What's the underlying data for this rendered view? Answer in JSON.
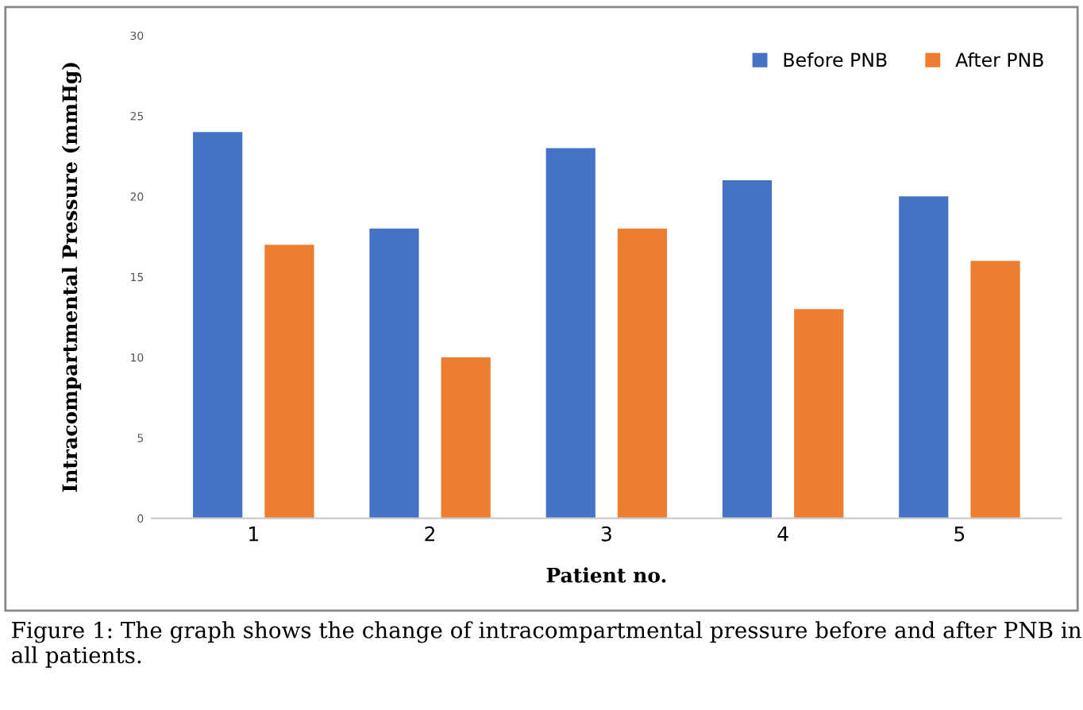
{
  "chart_data": {
    "type": "bar",
    "xlabel": "Patient no.",
    "ylabel": "Intracompartmental Pressure (mmHg)",
    "categories": [
      "1",
      "2",
      "3",
      "4",
      "5"
    ],
    "series": [
      {
        "name": "Before PNB",
        "color": "#4472c4",
        "values": [
          24,
          18,
          23,
          21,
          20
        ]
      },
      {
        "name": "After PNB",
        "color": "#ed7d31",
        "values": [
          17,
          10,
          18,
          13,
          16
        ]
      }
    ],
    "ylim": [
      0,
      30
    ],
    "yticks": [
      0,
      5,
      10,
      15,
      20,
      25,
      30
    ],
    "grid": false,
    "legend": "top right",
    "annotations": [
      "Figure 1: The graph shows the change of intracompartmental pressure before and after PNB in all patients."
    ]
  }
}
